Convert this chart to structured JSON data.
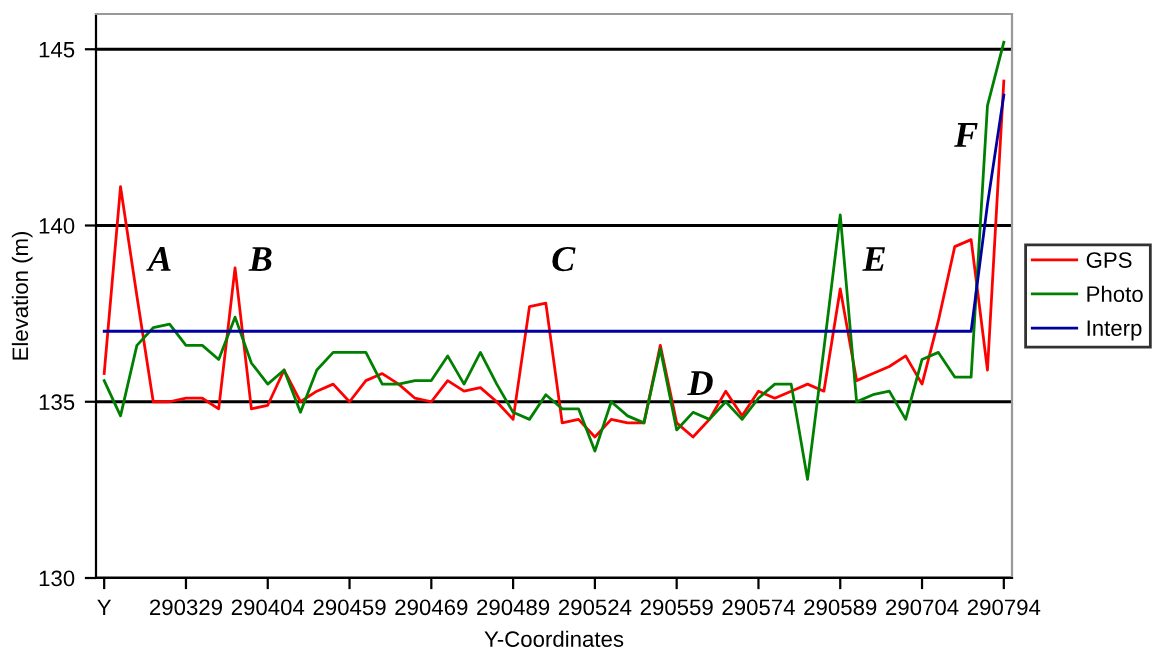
{
  "chart_data": {
    "type": "line",
    "xlabel": "Y-Coordinates",
    "ylabel": "Elevation (m)",
    "categories": [
      "Y",
      null,
      null,
      null,
      null,
      "290329",
      null,
      null,
      null,
      null,
      "290404",
      null,
      null,
      null,
      null,
      "290459",
      null,
      null,
      null,
      null,
      "290469",
      null,
      null,
      null,
      null,
      "290489",
      null,
      null,
      null,
      null,
      "290524",
      null,
      null,
      null,
      null,
      "290559",
      null,
      null,
      null,
      null,
      "290574",
      null,
      null,
      null,
      null,
      "290589",
      null,
      null,
      null,
      null,
      "290704",
      null,
      null,
      null,
      null,
      "290794"
    ],
    "series": [
      {
        "name": "GPS",
        "color": "#ff0000",
        "values": [
          135.8,
          141.1,
          138.0,
          135.0,
          135.0,
          135.1,
          135.1,
          134.8,
          138.8,
          134.8,
          134.9,
          135.9,
          135.0,
          135.3,
          135.5,
          135.0,
          135.6,
          135.8,
          135.5,
          135.1,
          135.0,
          135.6,
          135.3,
          135.4,
          135.0,
          134.5,
          137.7,
          137.8,
          134.4,
          134.5,
          134.0,
          134.5,
          134.4,
          134.4,
          136.6,
          134.4,
          134.0,
          134.5,
          135.3,
          134.6,
          135.3,
          135.1,
          135.3,
          135.5,
          135.3,
          138.2,
          135.6,
          135.8,
          136.0,
          136.3,
          135.5,
          137.3,
          139.4,
          139.6,
          135.9,
          144.1
        ]
      },
      {
        "name": "Photo",
        "color": "#008000",
        "values": [
          135.6,
          134.6,
          136.6,
          137.1,
          137.2,
          136.6,
          136.6,
          136.2,
          137.4,
          136.1,
          135.5,
          135.9,
          134.7,
          135.9,
          136.4,
          136.4,
          136.4,
          135.5,
          135.5,
          135.6,
          135.6,
          136.3,
          135.5,
          136.4,
          135.5,
          134.7,
          134.5,
          135.2,
          134.8,
          134.8,
          133.6,
          135.0,
          134.6,
          134.4,
          136.5,
          134.2,
          134.7,
          134.5,
          135.0,
          134.5,
          135.1,
          135.5,
          135.5,
          132.8,
          136.5,
          140.3,
          135.0,
          135.2,
          135.3,
          134.5,
          136.2,
          136.4,
          135.7,
          135.7,
          143.4,
          145.2
        ]
      },
      {
        "name": "Interp",
        "color": "#0000a0",
        "values": [
          137.0,
          137.0,
          137.0,
          137.0,
          137.0,
          137.0,
          137.0,
          137.0,
          137.0,
          137.0,
          137.0,
          137.0,
          137.0,
          137.0,
          137.0,
          137.0,
          137.0,
          137.0,
          137.0,
          137.0,
          137.0,
          137.0,
          137.0,
          137.0,
          137.0,
          137.0,
          137.0,
          137.0,
          137.0,
          137.0,
          137.0,
          137.0,
          137.0,
          137.0,
          137.0,
          137.0,
          137.0,
          137.0,
          137.0,
          137.0,
          137.0,
          137.0,
          137.0,
          137.0,
          137.0,
          137.0,
          137.0,
          137.0,
          137.0,
          137.0,
          137.0,
          137.0,
          137.0,
          137.0,
          140.6,
          143.7
        ]
      }
    ],
    "ylim": [
      130,
      146
    ],
    "yticks": [
      130,
      135,
      140,
      145
    ],
    "grid": "y",
    "legend": "right",
    "annotations": [
      "A",
      "B",
      "C",
      "D",
      "E",
      "F"
    ]
  }
}
